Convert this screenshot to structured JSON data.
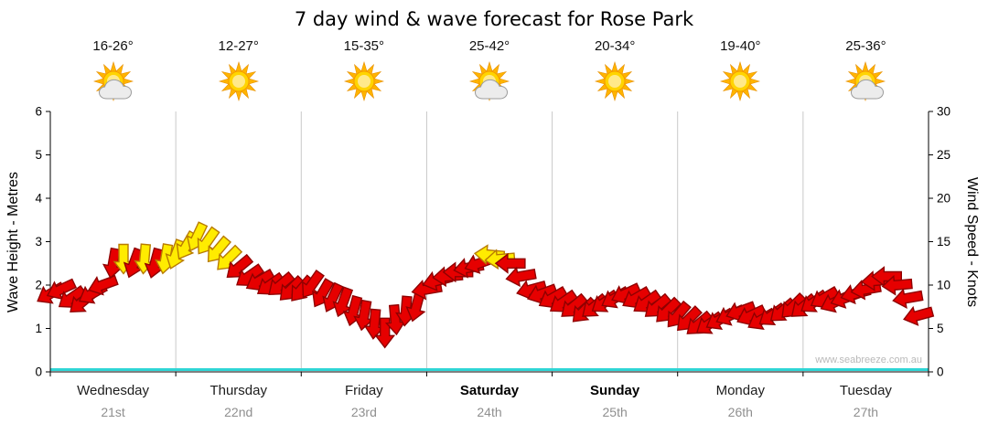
{
  "title": "7 day wind & wave forecast for Rose Park",
  "watermark": "www.seabreeze.com.au",
  "axes": {
    "left_label": "Wave Height - Metres",
    "right_label": "Wind Speed - Knots",
    "left_ticks": [
      0,
      1,
      2,
      3,
      4,
      5,
      6
    ],
    "right_ticks": [
      0,
      5,
      10,
      15,
      20,
      25,
      30
    ],
    "left_max": 6,
    "right_max": 30
  },
  "days": [
    {
      "name": "Wednesday",
      "date": "21st",
      "temp": "16-26°",
      "icon": "sun-cloud",
      "bold": false
    },
    {
      "name": "Thursday",
      "date": "22nd",
      "temp": "12-27°",
      "icon": "sun",
      "bold": false
    },
    {
      "name": "Friday",
      "date": "23rd",
      "temp": "15-35°",
      "icon": "sun",
      "bold": false
    },
    {
      "name": "Saturday",
      "date": "24th",
      "temp": "25-42°",
      "icon": "sun-cloud",
      "bold": true
    },
    {
      "name": "Sunday",
      "date": "25th",
      "temp": "20-34°",
      "icon": "sun",
      "bold": true
    },
    {
      "name": "Monday",
      "date": "26th",
      "temp": "19-40°",
      "icon": "sun",
      "bold": false
    },
    {
      "name": "Tuesday",
      "date": "27th",
      "temp": "25-36°",
      "icon": "sun-cloud",
      "bold": false
    }
  ],
  "colors": {
    "arrow_red": "#e60000",
    "arrow_red_outline": "#8f0000",
    "arrow_yellow": "#ffec00",
    "arrow_yellow_outline": "#b87b00",
    "baseline": "#2fd6d6",
    "grid": "#c9c9c9",
    "axis": "#000000",
    "date_text": "#8f8f8f",
    "watermark_text": "#b9b9b9"
  },
  "chart_data": {
    "type": "wind-arrows",
    "title": "7 day wind & wave forecast for Rose Park",
    "x_axis": "time in hours from Wednesday 21st 00:00 to Tuesday 27th 24:00 (168 h total, one arrow every 2 h)",
    "y_left": "Wave Height - Metres, range 0-6",
    "y_right": "Wind Speed - Knots, range 0-30",
    "legend": "arrow colour: red = lighter wind, yellow = >= 13 knots; arrow rotation = wind direction",
    "yellow_threshold_knots": 13,
    "day_labels": [
      "Wednesday 21st",
      "Thursday 22nd",
      "Friday 23rd",
      "Saturday 24th",
      "Sunday 25th",
      "Monday 26th",
      "Tuesday 27th"
    ],
    "temperatures": [
      "16-26°",
      "12-27°",
      "15-35°",
      "25-42°",
      "20-34°",
      "19-40°",
      "25-36°"
    ],
    "points_format": [
      "hours_from_start",
      "wind_knots",
      "arrow_direction_deg_cw_from_east"
    ],
    "points": [
      [
        0,
        9,
        150
      ],
      [
        2,
        9.5,
        155
      ],
      [
        4,
        8.5,
        145
      ],
      [
        6,
        8,
        140
      ],
      [
        8,
        9,
        150
      ],
      [
        10,
        10,
        160
      ],
      [
        12,
        12.5,
        100
      ],
      [
        14,
        13,
        90
      ],
      [
        16,
        12.5,
        110
      ],
      [
        18,
        13,
        95
      ],
      [
        20,
        12.5,
        105
      ],
      [
        22,
        13,
        100
      ],
      [
        24,
        13.5,
        110
      ],
      [
        26,
        14.5,
        120
      ],
      [
        28,
        15.5,
        115
      ],
      [
        30,
        15,
        125
      ],
      [
        32,
        14,
        130
      ],
      [
        34,
        13,
        135
      ],
      [
        36,
        12,
        140
      ],
      [
        38,
        11,
        145
      ],
      [
        40,
        10.5,
        150
      ],
      [
        42,
        10,
        145
      ],
      [
        44,
        10,
        140
      ],
      [
        46,
        9.5,
        135
      ],
      [
        48,
        9.5,
        130
      ],
      [
        50,
        10,
        125
      ],
      [
        52,
        9,
        120
      ],
      [
        54,
        8.5,
        115
      ],
      [
        56,
        8,
        110
      ],
      [
        58,
        7,
        105
      ],
      [
        60,
        6.5,
        100
      ],
      [
        62,
        5.5,
        95
      ],
      [
        64,
        4.5,
        90
      ],
      [
        66,
        6,
        85
      ],
      [
        68,
        7,
        95
      ],
      [
        70,
        7.5,
        105
      ],
      [
        72,
        9.5,
        170
      ],
      [
        74,
        10.5,
        165
      ],
      [
        76,
        11,
        175
      ],
      [
        78,
        11.5,
        180
      ],
      [
        80,
        12,
        170
      ],
      [
        82,
        12.5,
        160
      ],
      [
        84,
        13.5,
        185
      ],
      [
        86,
        13,
        175
      ],
      [
        88,
        12.5,
        180
      ],
      [
        90,
        11,
        170
      ],
      [
        92,
        9.5,
        165
      ],
      [
        94,
        9,
        160
      ],
      [
        96,
        8.5,
        150
      ],
      [
        98,
        8,
        145
      ],
      [
        100,
        7.5,
        140
      ],
      [
        102,
        7,
        135
      ],
      [
        104,
        7.5,
        140
      ],
      [
        106,
        8,
        145
      ],
      [
        108,
        8.5,
        150
      ],
      [
        110,
        9,
        155
      ],
      [
        112,
        8.5,
        150
      ],
      [
        114,
        8,
        145
      ],
      [
        116,
        7.5,
        140
      ],
      [
        118,
        7,
        135
      ],
      [
        120,
        6.5,
        130
      ],
      [
        122,
        6,
        135
      ],
      [
        124,
        5.5,
        140
      ],
      [
        126,
        5.5,
        145
      ],
      [
        128,
        6,
        150
      ],
      [
        130,
        6.5,
        155
      ],
      [
        132,
        7,
        160
      ],
      [
        134,
        6.5,
        155
      ],
      [
        136,
        6,
        150
      ],
      [
        138,
        6.5,
        145
      ],
      [
        140,
        7,
        140
      ],
      [
        142,
        7.5,
        135
      ],
      [
        144,
        7.5,
        140
      ],
      [
        146,
        8,
        145
      ],
      [
        148,
        8.5,
        150
      ],
      [
        150,
        8,
        155
      ],
      [
        152,
        8.5,
        160
      ],
      [
        154,
        9,
        165
      ],
      [
        156,
        9.5,
        170
      ],
      [
        158,
        10.5,
        175
      ],
      [
        160,
        11,
        180
      ],
      [
        162,
        10,
        175
      ],
      [
        164,
        8.5,
        170
      ],
      [
        166,
        6.5,
        165
      ]
    ]
  }
}
